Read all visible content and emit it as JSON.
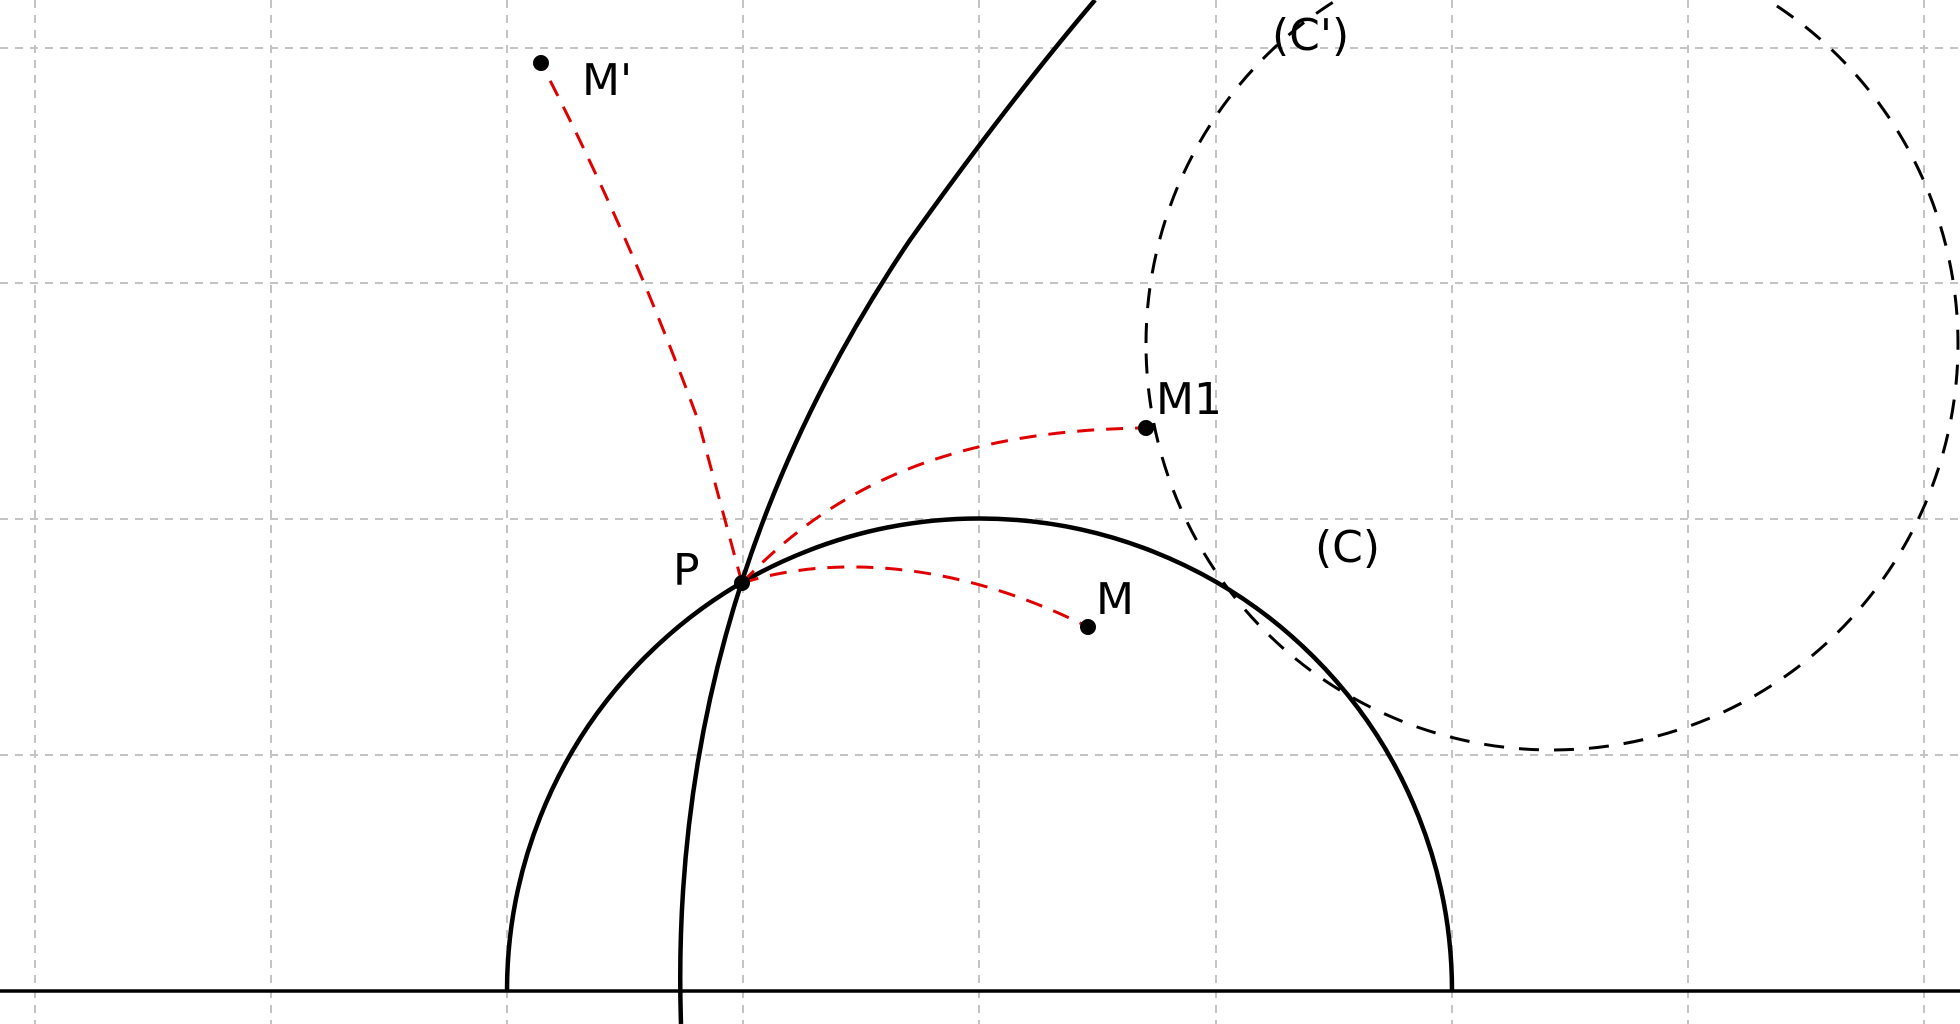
{
  "labels": {
    "curve_c_prime": "(C')",
    "curve_c": "(C)",
    "point_m_prime": "M'",
    "point_m1": "M1",
    "point_p": "P",
    "point_m": "M"
  },
  "colors": {
    "background": "#ffffff",
    "grid": "#c4c4c4",
    "ink": "#000000",
    "construction": "#e00000"
  }
}
